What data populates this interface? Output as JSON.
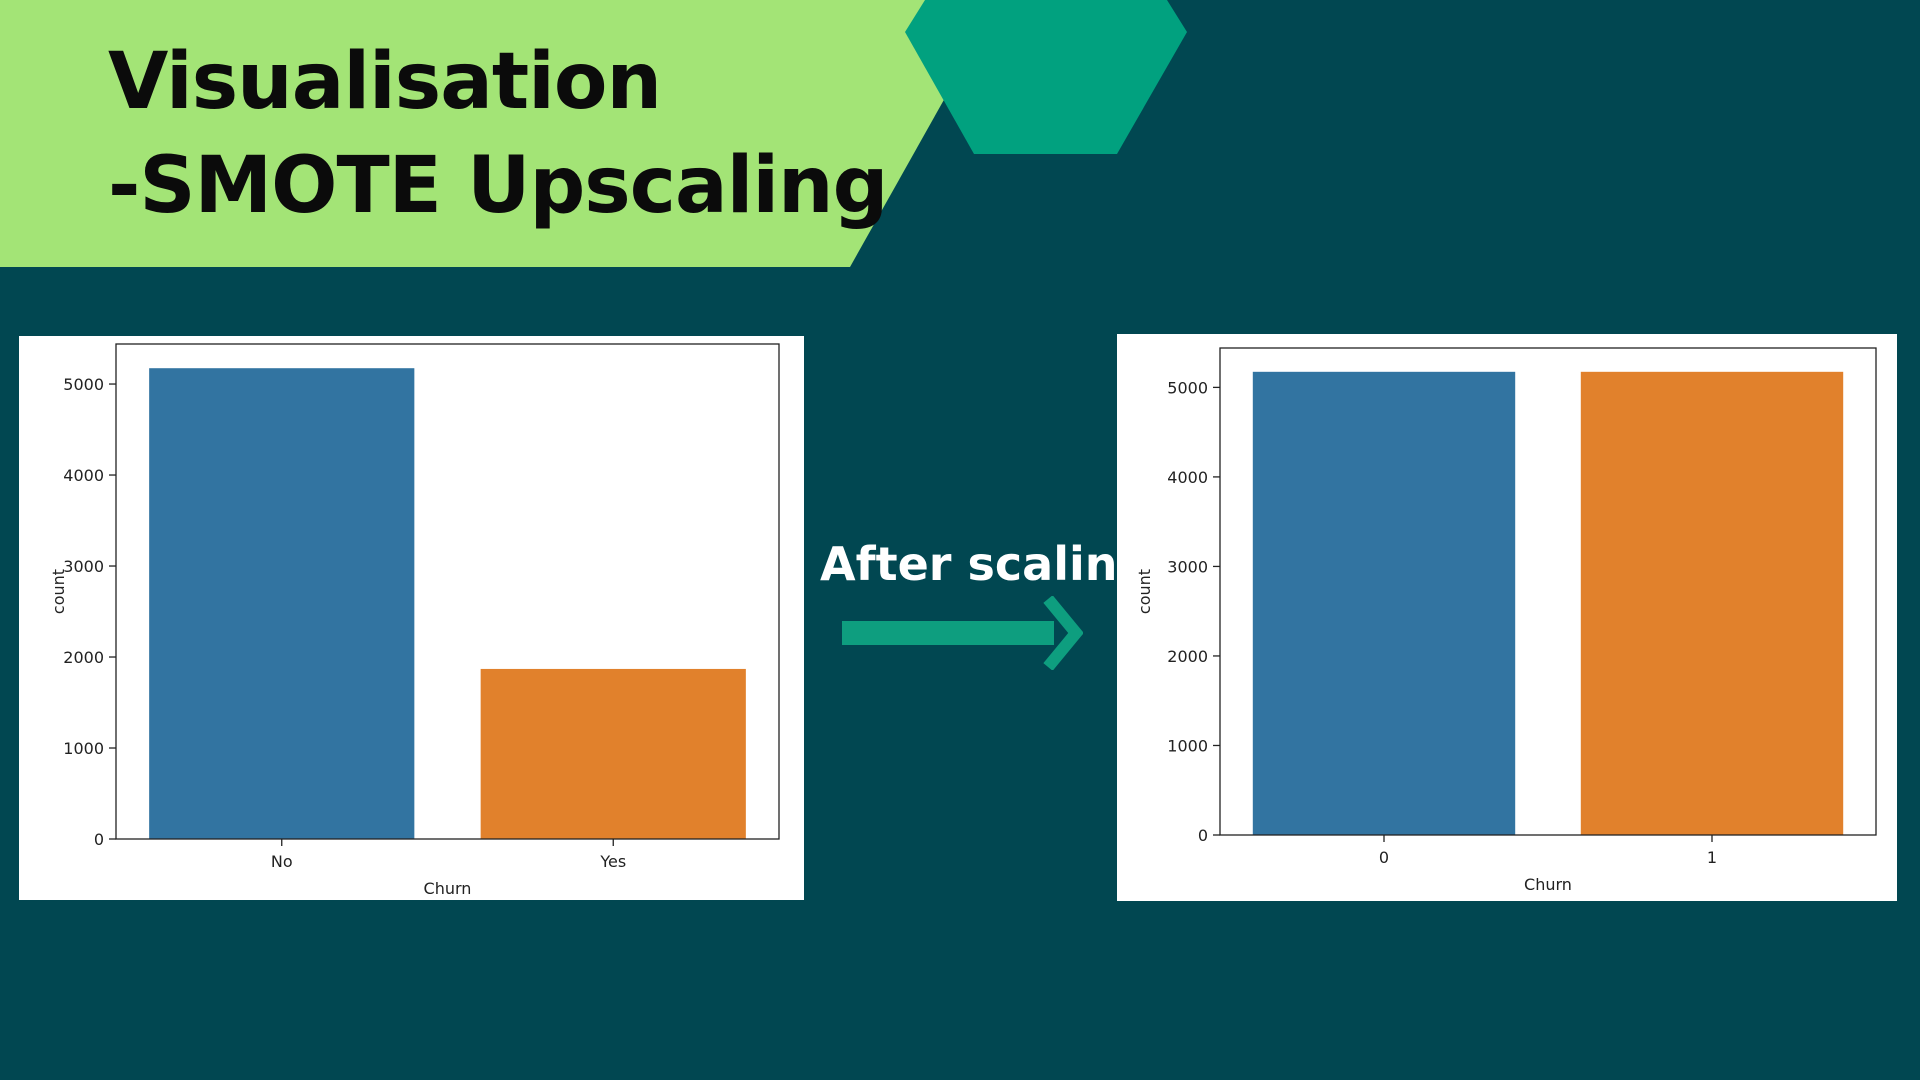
{
  "title": {
    "line1": "Visualisation",
    "line2": "-SMOTE Upscaling"
  },
  "annotation": {
    "text": "After scaling"
  },
  "colors": {
    "background": "#014751",
    "banner": "#a3e476",
    "hexagon": "#01a17f",
    "arrow": "#0e9e7f",
    "series_blue": "#3274a1",
    "series_orange": "#e1812c"
  },
  "chart_data": [
    {
      "type": "bar",
      "title": "",
      "xlabel": "Churn",
      "ylabel": "count",
      "categories": [
        "No",
        "Yes"
      ],
      "values": [
        5174,
        1869
      ],
      "bar_colors": [
        "#3274a1",
        "#e1812c"
      ],
      "ylim": [
        0,
        5440
      ],
      "yticks": [
        0,
        1000,
        2000,
        3000,
        4000,
        5000
      ],
      "grid": false
    },
    {
      "type": "bar",
      "title": "",
      "xlabel": "Churn",
      "ylabel": "count",
      "categories": [
        "0",
        "1"
      ],
      "values": [
        5174,
        5174
      ],
      "bar_colors": [
        "#3274a1",
        "#e1812c"
      ],
      "ylim": [
        0,
        5440
      ],
      "yticks": [
        0,
        1000,
        2000,
        3000,
        4000,
        5000
      ],
      "grid": false
    }
  ]
}
